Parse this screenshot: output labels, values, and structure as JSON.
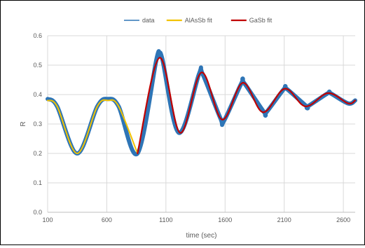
{
  "chart_data": {
    "type": "line",
    "title": "",
    "xlabel": "time (sec)",
    "ylabel": "R",
    "xlim": [
      100,
      2700
    ],
    "ylim": [
      0.0,
      0.6
    ],
    "x_ticks": [
      "100",
      "600",
      "1100",
      "1600",
      "2100",
      "2600"
    ],
    "y_ticks": [
      "0.0",
      "0.1",
      "0.2",
      "0.3",
      "0.4",
      "0.5",
      "0.6"
    ],
    "grid": true,
    "legend_position": "top",
    "series": [
      {
        "name": "data",
        "color": "#2e75b6",
        "x": [
          100,
          180,
          350,
          520,
          610,
          700,
          860,
          1020,
          1045,
          1070,
          1210,
          1380,
          1410,
          1560,
          1590,
          1740,
          1760,
          1930,
          1950,
          2100,
          2120,
          2290,
          2300,
          2470,
          2490,
          2640,
          2700
        ],
        "y": [
          0.385,
          0.36,
          0.2,
          0.36,
          0.385,
          0.36,
          0.2,
          0.52,
          0.53,
          0.52,
          0.27,
          0.47,
          0.47,
          0.32,
          0.31,
          0.44,
          0.44,
          0.34,
          0.34,
          0.42,
          0.42,
          0.36,
          0.36,
          0.405,
          0.405,
          0.37,
          0.38
        ]
      },
      {
        "name": "AlAsSb fit",
        "color": "#f2c200",
        "x": [
          100,
          180,
          350,
          520,
          610,
          700,
          860
        ],
        "y": [
          0.38,
          0.36,
          0.2,
          0.36,
          0.38,
          0.36,
          0.2
        ]
      },
      {
        "name": "GaSb fit",
        "color": "#c00000",
        "x": [
          860,
          1045,
          1220,
          1400,
          1575,
          1750,
          1920,
          2105,
          2280,
          2470,
          2640,
          2700
        ],
        "y": [
          0.2,
          0.525,
          0.27,
          0.475,
          0.315,
          0.44,
          0.34,
          0.42,
          0.36,
          0.405,
          0.37,
          0.38
        ]
      }
    ]
  }
}
